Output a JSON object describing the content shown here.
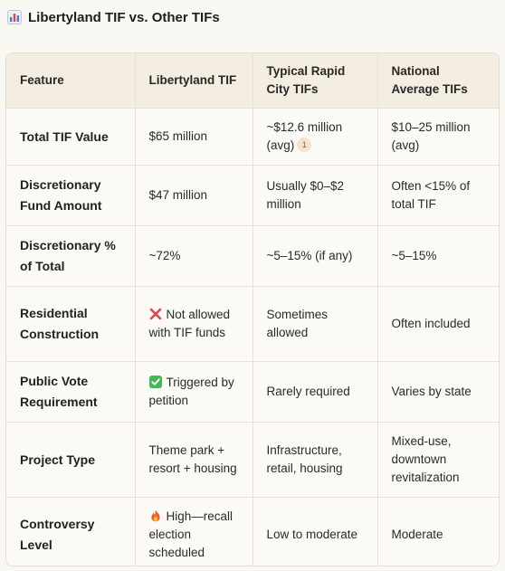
{
  "title": "Libertyland TIF vs. Other TIFs",
  "columns": [
    "Feature",
    "Libertyland TIF",
    "Typical Rapid City TIFs",
    "National Average TIFs"
  ],
  "rows": [
    {
      "feature": "Total TIF Value",
      "libertyland": "$65 million",
      "rapid_city": "~$12.6 million (avg)",
      "rapid_city_citation": "1",
      "national": "$10–25 million (avg)"
    },
    {
      "feature": "Discretionary Fund Amount",
      "libertyland": "$47 million",
      "rapid_city": "Usually $0–$2 million",
      "national": "Often <15% of total TIF"
    },
    {
      "feature": "Discretionary % of Total",
      "libertyland": "~72%",
      "rapid_city": "~5–15% (if any)",
      "national": "~5–15%"
    },
    {
      "feature": "Residential Construction",
      "libertyland_icon": "red-cross-icon",
      "libertyland": "Not allowed with TIF funds",
      "rapid_city": "Sometimes allowed",
      "national": "Often included"
    },
    {
      "feature": "Public Vote Requirement",
      "libertyland_icon": "green-check-icon",
      "libertyland": "Triggered by petition",
      "rapid_city": "Rarely required",
      "national": "Varies by state"
    },
    {
      "feature": "Project Type",
      "libertyland": "Theme park + resort + housing",
      "rapid_city": "Infrastructure, retail, housing",
      "national": "Mixed-use, downtown revitalization"
    },
    {
      "feature": "Controversy Level",
      "libertyland_icon": "fire-icon",
      "libertyland": "High—recall election scheduled",
      "rapid_city": "Low to moderate",
      "national": "Moderate"
    }
  ],
  "colors": {
    "header_bg": "#f3ede2",
    "border": "#e6e2d9",
    "page_bg": "#faf8f3",
    "cross": "#e0474c",
    "check": "#3fb950",
    "citation_bg": "#f2e4d3"
  }
}
